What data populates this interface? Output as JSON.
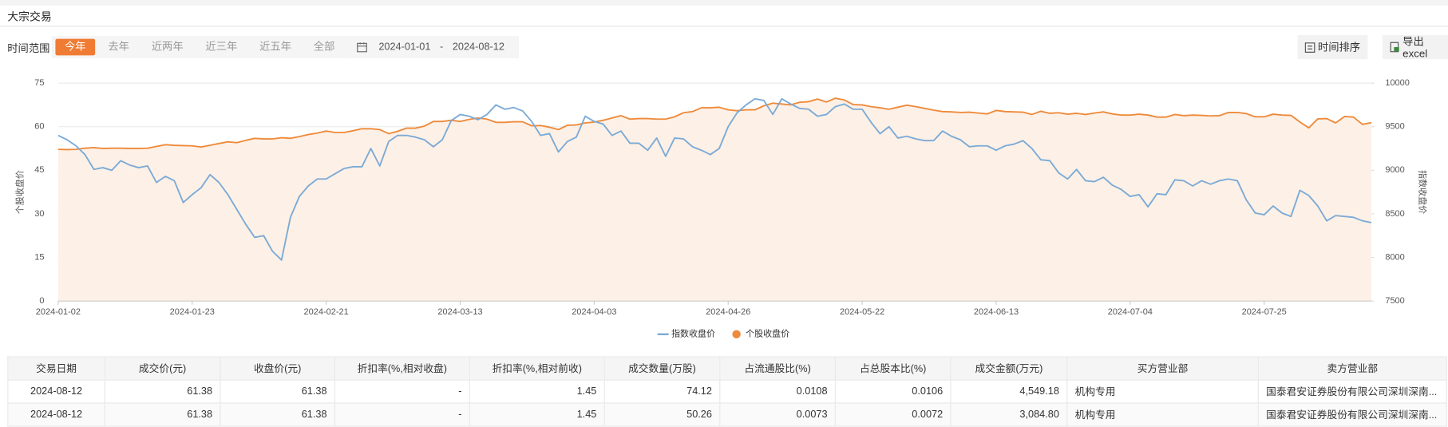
{
  "header": {
    "title": "大宗交易"
  },
  "filters": {
    "label": "时间范围",
    "options": [
      "今年",
      "去年",
      "近两年",
      "近三年",
      "近五年",
      "全部"
    ],
    "date_start": "2024-01-01",
    "date_separator": "-",
    "date_end": "2024-08-12",
    "sort_button": "时间排序",
    "export_button": "导出excel"
  },
  "chart_data": {
    "type": "line",
    "ylabel": "个股收盘价",
    "y2label": "指数收盘价",
    "ylim": [
      0,
      75
    ],
    "yticks": [
      0,
      15,
      30,
      45,
      60,
      75
    ],
    "y2lim": [
      7500,
      10000
    ],
    "y2ticks": [
      7500,
      8000,
      8500,
      9000,
      9500,
      10000
    ],
    "grid": true,
    "legend": "bottom",
    "categories": [
      "2024-01-02",
      null,
      null,
      null,
      null,
      null,
      null,
      null,
      null,
      null,
      null,
      null,
      null,
      null,
      null,
      "2024-01-23",
      null,
      null,
      null,
      null,
      null,
      null,
      null,
      null,
      null,
      null,
      null,
      null,
      null,
      null,
      "2024-02-21",
      null,
      null,
      null,
      null,
      null,
      null,
      null,
      null,
      null,
      null,
      null,
      null,
      null,
      null,
      "2024-03-13",
      null,
      null,
      null,
      null,
      null,
      null,
      null,
      null,
      null,
      null,
      null,
      null,
      null,
      null,
      "2024-04-03",
      null,
      null,
      null,
      null,
      null,
      null,
      null,
      null,
      null,
      null,
      null,
      null,
      null,
      null,
      "2024-04-26",
      null,
      null,
      null,
      null,
      null,
      null,
      null,
      null,
      null,
      null,
      null,
      null,
      null,
      null,
      "2024-05-22",
      null,
      null,
      null,
      null,
      null,
      null,
      null,
      null,
      null,
      null,
      null,
      null,
      null,
      null,
      "2024-06-13",
      null,
      null,
      null,
      null,
      null,
      null,
      null,
      null,
      null,
      null,
      null,
      null,
      null,
      null,
      "2024-07-04",
      null,
      null,
      null,
      null,
      null,
      null,
      null,
      null,
      null,
      null,
      null,
      null,
      null,
      null,
      "2024-07-25",
      null,
      null,
      null,
      null,
      null,
      null,
      null,
      null,
      null,
      null,
      null,
      null
    ],
    "series": [
      {
        "name": "指数收盘价",
        "color": "#7aaad6",
        "axis": "y2",
        "values": [
          9400,
          9350,
          9280,
          9180,
          9010,
          9030,
          9000,
          9110,
          9060,
          9030,
          9050,
          8860,
          8930,
          8880,
          8630,
          8720,
          8800,
          8950,
          8860,
          8720,
          8550,
          8380,
          8230,
          8250,
          8070,
          7970,
          8460,
          8700,
          8820,
          8900,
          8900,
          8960,
          9020,
          9040,
          9040,
          9250,
          9050,
          9330,
          9400,
          9400,
          9380,
          9350,
          9270,
          9350,
          9570,
          9640,
          9620,
          9580,
          9640,
          9750,
          9700,
          9720,
          9680,
          9560,
          9400,
          9420,
          9210,
          9330,
          9380,
          9620,
          9560,
          9530,
          9400,
          9450,
          9310,
          9310,
          9230,
          9370,
          9160,
          9370,
          9360,
          9270,
          9230,
          9180,
          9250,
          9500,
          9660,
          9750,
          9820,
          9800,
          9640,
          9820,
          9760,
          9710,
          9700,
          9620,
          9640,
          9730,
          9760,
          9700,
          9700,
          9550,
          9420,
          9500,
          9370,
          9390,
          9360,
          9340,
          9340,
          9450,
          9390,
          9350,
          9270,
          9280,
          9280,
          9230,
          9280,
          9300,
          9340,
          9250,
          9120,
          9110,
          8970,
          8900,
          9010,
          8880,
          8870,
          8920,
          8830,
          8780,
          8700,
          8720,
          8580,
          8730,
          8720,
          8890,
          8880,
          8820,
          8880,
          8840,
          8880,
          8900,
          8880,
          8660,
          8510,
          8490,
          8590,
          8510,
          8470,
          8770,
          8710,
          8590,
          8420,
          8480,
          8470,
          8460,
          8420,
          8400
        ]
      },
      {
        "name": "个股收盘价",
        "color": "#ee8a3a",
        "fill": "#fdf0e6",
        "type": "area",
        "values": [
          52.2,
          52.1,
          52.2,
          52.6,
          52.8,
          52.5,
          52.6,
          52.6,
          52.5,
          52.5,
          52.6,
          53.2,
          53.8,
          53.6,
          53.5,
          53.4,
          53.0,
          53.6,
          54.2,
          54.8,
          54.5,
          55.3,
          56.0,
          55.8,
          55.8,
          56.2,
          56.0,
          56.6,
          57.3,
          57.8,
          58.5,
          58.0,
          58.0,
          58.6,
          59.3,
          59.3,
          59.0,
          57.6,
          58.4,
          59.5,
          59.5,
          60.2,
          61.8,
          61.8,
          62.2,
          61.8,
          62.5,
          63.0,
          62.6,
          61.5,
          61.5,
          61.7,
          61.7,
          60.3,
          60.4,
          59.8,
          59.0,
          60.5,
          60.6,
          61.3,
          61.6,
          62.2,
          63.0,
          63.8,
          62.6,
          62.8,
          62.8,
          62.6,
          62.6,
          63.4,
          64.8,
          65.2,
          66.5,
          66.5,
          66.7,
          65.8,
          65.5,
          65.8,
          65.8,
          67.2,
          68.1,
          67.8,
          67.5,
          68.4,
          68.6,
          69.5,
          68.5,
          69.8,
          69.2,
          67.6,
          67.5,
          66.9,
          66.5,
          66.0,
          66.7,
          67.4,
          66.9,
          66.3,
          65.7,
          65.2,
          65.1,
          64.9,
          65.0,
          64.7,
          64.4,
          65.6,
          65.2,
          65.1,
          65.0,
          64.2,
          65.3,
          64.6,
          64.8,
          64.3,
          64.6,
          64.2,
          64.7,
          65.1,
          64.4,
          64.0,
          64.0,
          64.3,
          64.0,
          63.3,
          63.3,
          64.2,
          63.8,
          64.0,
          63.9,
          63.7,
          63.8,
          64.9,
          64.9,
          64.5,
          63.4,
          63.4,
          64.3,
          64.0,
          63.9,
          61.6,
          59.6,
          62.7,
          62.8,
          61.3,
          63.5,
          63.3,
          60.8,
          61.4
        ]
      }
    ]
  },
  "table": {
    "columns": [
      "交易日期",
      "成交价(元)",
      "收盘价(元)",
      "折扣率(%,相对收盘)",
      "折扣率(%,相对前收)",
      "成交数量(万股)",
      "占流通股比(%)",
      "占总股本比(%)",
      "成交金额(万元)",
      "买方营业部",
      "卖方营业部"
    ],
    "rows": [
      [
        "2024-08-12",
        "61.38",
        "61.38",
        "-",
        "1.45",
        "74.12",
        "0.0108",
        "0.0106",
        "4,549.18",
        "机构专用",
        "国泰君安证券股份有限公司深圳深南..."
      ],
      [
        "2024-08-12",
        "61.38",
        "61.38",
        "-",
        "1.45",
        "50.26",
        "0.0073",
        "0.0072",
        "3,084.80",
        "机构专用",
        "国泰君安证券股份有限公司深圳深南..."
      ]
    ]
  }
}
